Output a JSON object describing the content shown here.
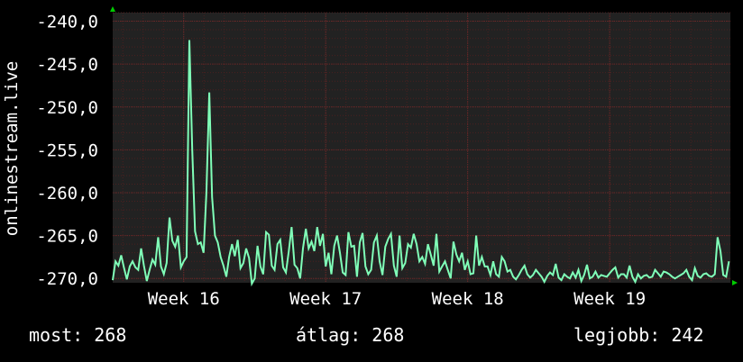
{
  "colors": {
    "background": "#000000",
    "plot_background": "#222222",
    "grid": "#4a2020",
    "grid_major": "#6a2a2a",
    "line": "#80ffb8",
    "axis_arrow": "#00cc00",
    "text": "#ffffff"
  },
  "stats": {
    "now": "most: 268",
    "average": "átlag: 268",
    "best": "legjobb: 242"
  },
  "chart_data": {
    "type": "line",
    "ylabel": "onlinestream.live",
    "ylim": [
      -270.5,
      -239.0
    ],
    "yticks": [
      -240,
      -245,
      -250,
      -255,
      -260,
      -265,
      -270
    ],
    "ytick_labels": [
      "-240,0",
      "-245,0",
      "-250,0",
      "-255,0",
      "-260,0",
      "-265,0",
      "-270,0"
    ],
    "xticks": [
      16,
      17,
      18,
      19
    ],
    "xtick_labels": [
      "Week 16",
      "Week 17",
      "Week 18",
      "Week 19"
    ],
    "xlim": [
      15.5,
      19.85
    ],
    "grid": true,
    "series": [
      {
        "points": [
          [
            15.5,
            -270.2
          ],
          [
            15.52,
            -268.0
          ],
          [
            15.54,
            -268.5
          ],
          [
            15.56,
            -267.3
          ],
          [
            15.58,
            -268.8
          ],
          [
            15.6,
            -270.1
          ],
          [
            15.62,
            -268.6
          ],
          [
            15.64,
            -268.0
          ],
          [
            15.66,
            -268.7
          ],
          [
            15.68,
            -269.0
          ],
          [
            15.7,
            -266.5
          ],
          [
            15.72,
            -268.5
          ],
          [
            15.74,
            -270.3
          ],
          [
            15.76,
            -269.0
          ],
          [
            15.78,
            -267.8
          ],
          [
            15.8,
            -268.4
          ],
          [
            15.82,
            -265.2
          ],
          [
            15.84,
            -268.6
          ],
          [
            15.86,
            -269.5
          ],
          [
            15.88,
            -268.2
          ],
          [
            15.9,
            -262.9
          ],
          [
            15.92,
            -265.6
          ],
          [
            15.94,
            -266.3
          ],
          [
            15.96,
            -265.0
          ],
          [
            15.98,
            -268.7
          ],
          [
            16.0,
            -268.0
          ],
          [
            16.02,
            -267.5
          ],
          [
            16.04,
            -242.2
          ],
          [
            16.06,
            -255.0
          ],
          [
            16.08,
            -264.5
          ],
          [
            16.1,
            -266.0
          ],
          [
            16.12,
            -265.8
          ],
          [
            16.14,
            -267.0
          ],
          [
            16.16,
            -260.0
          ],
          [
            16.18,
            -248.3
          ],
          [
            16.2,
            -260.5
          ],
          [
            16.22,
            -265.0
          ],
          [
            16.24,
            -265.8
          ],
          [
            16.26,
            -267.5
          ],
          [
            16.28,
            -268.5
          ],
          [
            16.3,
            -269.8
          ],
          [
            16.32,
            -267.5
          ],
          [
            16.34,
            -266.0
          ],
          [
            16.36,
            -267.4
          ],
          [
            16.38,
            -265.5
          ],
          [
            16.4,
            -268.8
          ],
          [
            16.42,
            -268.2
          ],
          [
            16.44,
            -266.5
          ],
          [
            16.46,
            -267.6
          ],
          [
            16.48,
            -270.6
          ],
          [
            16.5,
            -270.0
          ],
          [
            16.52,
            -266.2
          ],
          [
            16.54,
            -268.6
          ],
          [
            16.56,
            -269.5
          ],
          [
            16.58,
            -264.6
          ],
          [
            16.6,
            -264.9
          ],
          [
            16.62,
            -268.5
          ],
          [
            16.64,
            -269.0
          ],
          [
            16.66,
            -266.0
          ],
          [
            16.68,
            -265.5
          ],
          [
            16.7,
            -268.7
          ],
          [
            16.72,
            -269.3
          ],
          [
            16.74,
            -266.8
          ],
          [
            16.76,
            -264.0
          ],
          [
            16.78,
            -268.4
          ],
          [
            16.8,
            -268.8
          ],
          [
            16.82,
            -270.0
          ],
          [
            16.84,
            -266.5
          ],
          [
            16.86,
            -264.2
          ],
          [
            16.88,
            -266.5
          ],
          [
            16.9,
            -265.7
          ],
          [
            16.92,
            -266.8
          ],
          [
            16.94,
            -264.0
          ],
          [
            16.96,
            -266.2
          ],
          [
            16.98,
            -264.8
          ],
          [
            17.0,
            -268.6
          ],
          [
            17.02,
            -267.0
          ],
          [
            17.04,
            -269.5
          ],
          [
            17.06,
            -266.2
          ],
          [
            17.08,
            -265.0
          ],
          [
            17.1,
            -267.0
          ],
          [
            17.12,
            -269.3
          ],
          [
            17.14,
            -269.6
          ],
          [
            17.16,
            -264.6
          ],
          [
            17.18,
            -266.3
          ],
          [
            17.2,
            -266.2
          ],
          [
            17.22,
            -269.8
          ],
          [
            17.24,
            -265.8
          ],
          [
            17.26,
            -264.7
          ],
          [
            17.28,
            -268.6
          ],
          [
            17.3,
            -269.5
          ],
          [
            17.32,
            -269.0
          ],
          [
            17.34,
            -265.8
          ],
          [
            17.36,
            -265.0
          ],
          [
            17.38,
            -268.0
          ],
          [
            17.4,
            -269.6
          ],
          [
            17.42,
            -266.3
          ],
          [
            17.44,
            -265.4
          ],
          [
            17.46,
            -264.8
          ],
          [
            17.48,
            -268.5
          ],
          [
            17.5,
            -269.8
          ],
          [
            17.52,
            -265.0
          ],
          [
            17.54,
            -268.8
          ],
          [
            17.56,
            -268.2
          ],
          [
            17.58,
            -266.0
          ],
          [
            17.6,
            -266.4
          ],
          [
            17.62,
            -264.8
          ],
          [
            17.64,
            -266.0
          ],
          [
            17.66,
            -268.0
          ],
          [
            17.68,
            -267.5
          ],
          [
            17.7,
            -268.3
          ],
          [
            17.72,
            -266.0
          ],
          [
            17.74,
            -267.2
          ],
          [
            17.76,
            -268.5
          ],
          [
            17.78,
            -264.8
          ],
          [
            17.8,
            -269.2
          ],
          [
            17.82,
            -268.6
          ],
          [
            17.84,
            -268.0
          ],
          [
            17.86,
            -269.0
          ],
          [
            17.88,
            -270.0
          ],
          [
            17.9,
            -265.7
          ],
          [
            17.92,
            -267.2
          ],
          [
            17.94,
            -268.0
          ],
          [
            17.96,
            -267.0
          ],
          [
            17.98,
            -269.0
          ],
          [
            18.0,
            -268.0
          ],
          [
            18.02,
            -269.5
          ],
          [
            18.04,
            -269.4
          ],
          [
            18.06,
            -265.0
          ],
          [
            18.08,
            -268.5
          ],
          [
            18.1,
            -267.5
          ],
          [
            18.12,
            -268.6
          ],
          [
            18.14,
            -268.6
          ],
          [
            18.16,
            -269.6
          ],
          [
            18.18,
            -268.0
          ],
          [
            18.2,
            -269.5
          ],
          [
            18.22,
            -269.8
          ],
          [
            18.24,
            -267.5
          ],
          [
            18.26,
            -268.0
          ],
          [
            18.28,
            -269.2
          ],
          [
            18.3,
            -269.0
          ],
          [
            18.32,
            -269.8
          ],
          [
            18.34,
            -270.1
          ],
          [
            18.36,
            -269.6
          ],
          [
            18.38,
            -269.0
          ],
          [
            18.4,
            -268.5
          ],
          [
            18.42,
            -269.5
          ],
          [
            18.44,
            -269.9
          ],
          [
            18.46,
            -269.6
          ],
          [
            18.48,
            -269.0
          ],
          [
            18.5,
            -269.4
          ],
          [
            18.52,
            -269.8
          ],
          [
            18.54,
            -270.4
          ],
          [
            18.56,
            -269.7
          ],
          [
            18.58,
            -269.3
          ],
          [
            18.6,
            -269.6
          ],
          [
            18.62,
            -268.3
          ],
          [
            18.64,
            -269.9
          ],
          [
            18.66,
            -270.2
          ],
          [
            18.68,
            -269.5
          ],
          [
            18.7,
            -269.8
          ],
          [
            18.72,
            -270.0
          ],
          [
            18.74,
            -269.3
          ],
          [
            18.76,
            -269.9
          ],
          [
            18.78,
            -269.0
          ],
          [
            18.8,
            -270.3
          ],
          [
            18.82,
            -269.6
          ],
          [
            18.84,
            -268.4
          ],
          [
            18.86,
            -270.0
          ],
          [
            18.88,
            -269.8
          ],
          [
            18.9,
            -269.2
          ],
          [
            18.92,
            -269.9
          ],
          [
            18.94,
            -269.6
          ],
          [
            18.96,
            -269.7
          ],
          [
            18.98,
            -269.8
          ],
          [
            19.0,
            -269.4
          ],
          [
            19.02,
            -269.0
          ],
          [
            19.04,
            -268.7
          ],
          [
            19.06,
            -269.9
          ],
          [
            19.08,
            -269.5
          ],
          [
            19.1,
            -269.5
          ],
          [
            19.12,
            -269.9
          ],
          [
            19.14,
            -268.5
          ],
          [
            19.16,
            -269.8
          ],
          [
            19.18,
            -270.4
          ],
          [
            19.2,
            -269.5
          ],
          [
            19.22,
            -270.0
          ],
          [
            19.24,
            -269.7
          ],
          [
            19.26,
            -269.6
          ],
          [
            19.28,
            -269.9
          ],
          [
            19.3,
            -269.8
          ],
          [
            19.32,
            -269.0
          ],
          [
            19.34,
            -269.4
          ],
          [
            19.36,
            -269.8
          ],
          [
            19.38,
            -269.2
          ],
          [
            19.4,
            -269.3
          ],
          [
            19.42,
            -269.5
          ],
          [
            19.44,
            -269.8
          ],
          [
            19.46,
            -270.0
          ],
          [
            19.48,
            -269.8
          ],
          [
            19.5,
            -269.6
          ],
          [
            19.52,
            -269.4
          ],
          [
            19.54,
            -269.0
          ],
          [
            19.56,
            -269.8
          ],
          [
            19.58,
            -270.2
          ],
          [
            19.6,
            -268.8
          ],
          [
            19.62,
            -269.7
          ],
          [
            19.64,
            -269.9
          ],
          [
            19.66,
            -269.5
          ],
          [
            19.68,
            -269.4
          ],
          [
            19.7,
            -269.7
          ],
          [
            19.72,
            -269.8
          ],
          [
            19.74,
            -269.5
          ],
          [
            19.76,
            -265.2
          ],
          [
            19.78,
            -266.8
          ],
          [
            19.8,
            -269.6
          ],
          [
            19.82,
            -269.8
          ],
          [
            19.84,
            -268.0
          ]
        ]
      }
    ]
  }
}
